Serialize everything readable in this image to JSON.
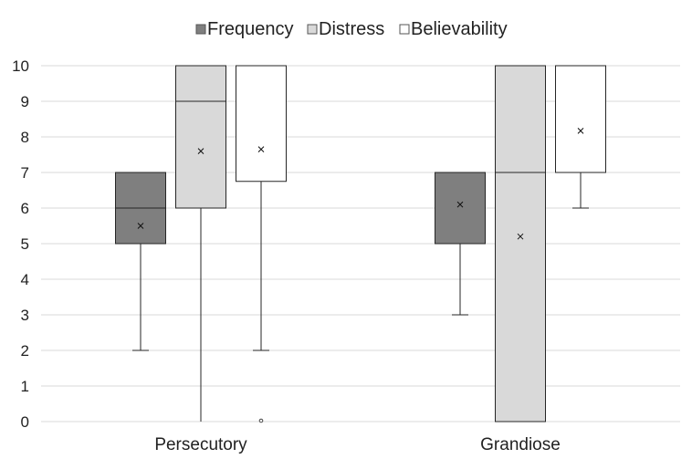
{
  "chart_data": {
    "type": "boxplot",
    "title": "",
    "xlabel": "",
    "ylabel": "",
    "ylim": [
      0,
      10
    ],
    "yticks": [
      0,
      1,
      2,
      3,
      4,
      5,
      6,
      7,
      8,
      9,
      10
    ],
    "grid": true,
    "legend_position": "top-center",
    "categories": [
      "Persecutory",
      "Grandiose"
    ],
    "series": [
      {
        "name": "Frequency",
        "color": "#7f7f7f",
        "boxes": [
          {
            "category": "Persecutory",
            "min": 2,
            "q1": 5,
            "median": 6,
            "q3": 7,
            "max": 7,
            "mean": 5.5,
            "outliers": []
          },
          {
            "category": "Grandiose",
            "min": 3,
            "q1": 5,
            "median": 7,
            "q3": 7,
            "max": 7,
            "mean": 6.1,
            "outliers": []
          }
        ]
      },
      {
        "name": "Distress",
        "color": "#d9d9d9",
        "boxes": [
          {
            "category": "Persecutory",
            "min": 0,
            "q1": 6,
            "median": 9,
            "q3": 10,
            "max": 10,
            "mean": 7.6,
            "outliers": []
          },
          {
            "category": "Grandiose",
            "min": 0,
            "q1": 0,
            "median": 7,
            "q3": 10,
            "max": 10,
            "mean": 5.2,
            "outliers": []
          }
        ]
      },
      {
        "name": "Believability",
        "color": "#ffffff",
        "boxes": [
          {
            "category": "Persecutory",
            "min": 2,
            "q1": 6.75,
            "median": 10,
            "q3": 10,
            "max": 10,
            "mean": 7.65,
            "outliers": [
              0
            ]
          },
          {
            "category": "Grandiose",
            "min": 6,
            "q1": 7,
            "median": 10,
            "q3": 10,
            "max": 10,
            "mean": 8.17,
            "outliers": []
          }
        ]
      }
    ]
  }
}
